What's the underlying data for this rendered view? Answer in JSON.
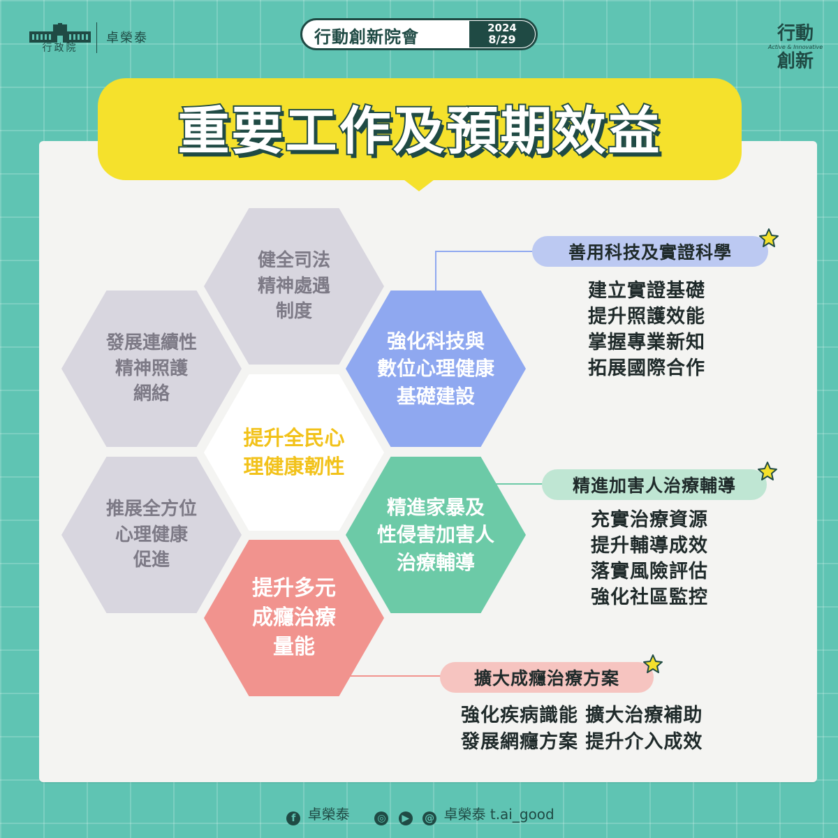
{
  "header": {
    "gov_org": "行政院",
    "minister": "卓榮泰",
    "event": {
      "title": "行動創新院會",
      "year": "2024",
      "date": "8/29"
    },
    "badge": {
      "line1": "行動",
      "line2": "創新",
      "tagline": "Active & Innovative"
    }
  },
  "title": "重要工作及預期效益",
  "hexagons": {
    "judicial": "健全司法\n精神處遇\n制度",
    "continuity": "發展連續性\n精神照護\n網絡",
    "promotion": "推展全方位\n心理健康\n促進",
    "center": "提升全民心\n理健康韌性",
    "tech": "強化科技與\n數位心理健康\n基礎建設",
    "violence": "精進家暴及\n性侵害加害人\n治療輔導",
    "addiction": "提升多元\n成癮治療\n量能"
  },
  "callouts": {
    "tech": {
      "label": "善用科技及實證科學",
      "items": "建立實證基礎\n提升照護效能\n掌握專業新知\n拓展國際合作"
    },
    "violence": {
      "label": "精進加害人治療輔導",
      "items": "充實治療資源\n提升輔導成效\n落實風險評估\n強化社區監控"
    },
    "addiction": {
      "label": "擴大成癮治療方案",
      "items": "強化疾病識能  擴大治療補助\n發展網癮方案  提升介入成效"
    }
  },
  "colors": {
    "background": "#5fc4b3",
    "banner": "#f5e12c",
    "dark": "#1f4a44",
    "hex_grey": "#d8d6df",
    "hex_blue": "#8fa8f0",
    "hex_green": "#6ccaa7",
    "hex_pink": "#f1938e",
    "center_text": "#f2c21a"
  },
  "footer": {
    "facebook": "卓榮泰",
    "social": "卓榮泰 t.ai_good"
  }
}
